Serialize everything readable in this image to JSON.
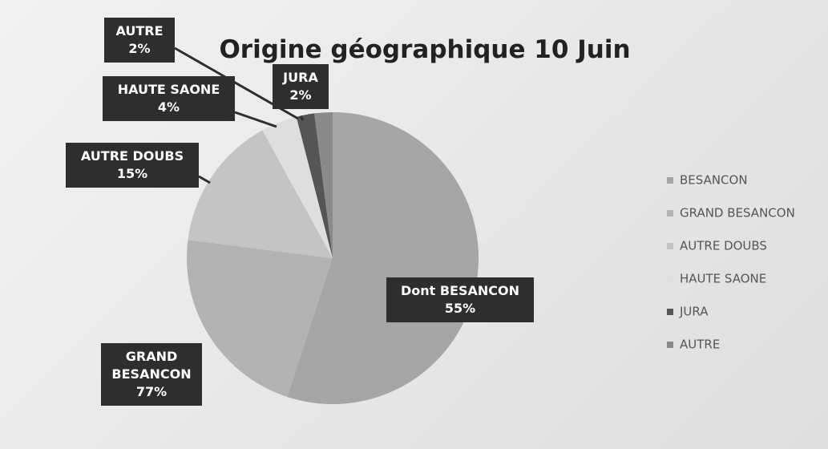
{
  "chart_data": {
    "type": "pie",
    "title": "Origine géographique 10 Juin",
    "categories": [
      "BESANCON",
      "GRAND BESANCON",
      "AUTRE DOUBS",
      "HAUTE SAONE",
      "JURA",
      "AUTRE"
    ],
    "label_names": [
      "Dont BESANCON",
      "GRAND BESANCON",
      "AUTRE DOUBS",
      "HAUTE SAONE",
      "JURA",
      "AUTRE"
    ],
    "values": [
      55,
      77,
      15,
      4,
      2,
      2
    ],
    "value_labels": [
      "55%",
      "77%",
      "15%",
      "4%",
      "2%",
      "2%"
    ],
    "colors": [
      "#a6a6a6",
      "#b3b3b3",
      "#c4c4c4",
      "#dedede",
      "#555555",
      "#8a8a8a"
    ],
    "legend": "right"
  }
}
